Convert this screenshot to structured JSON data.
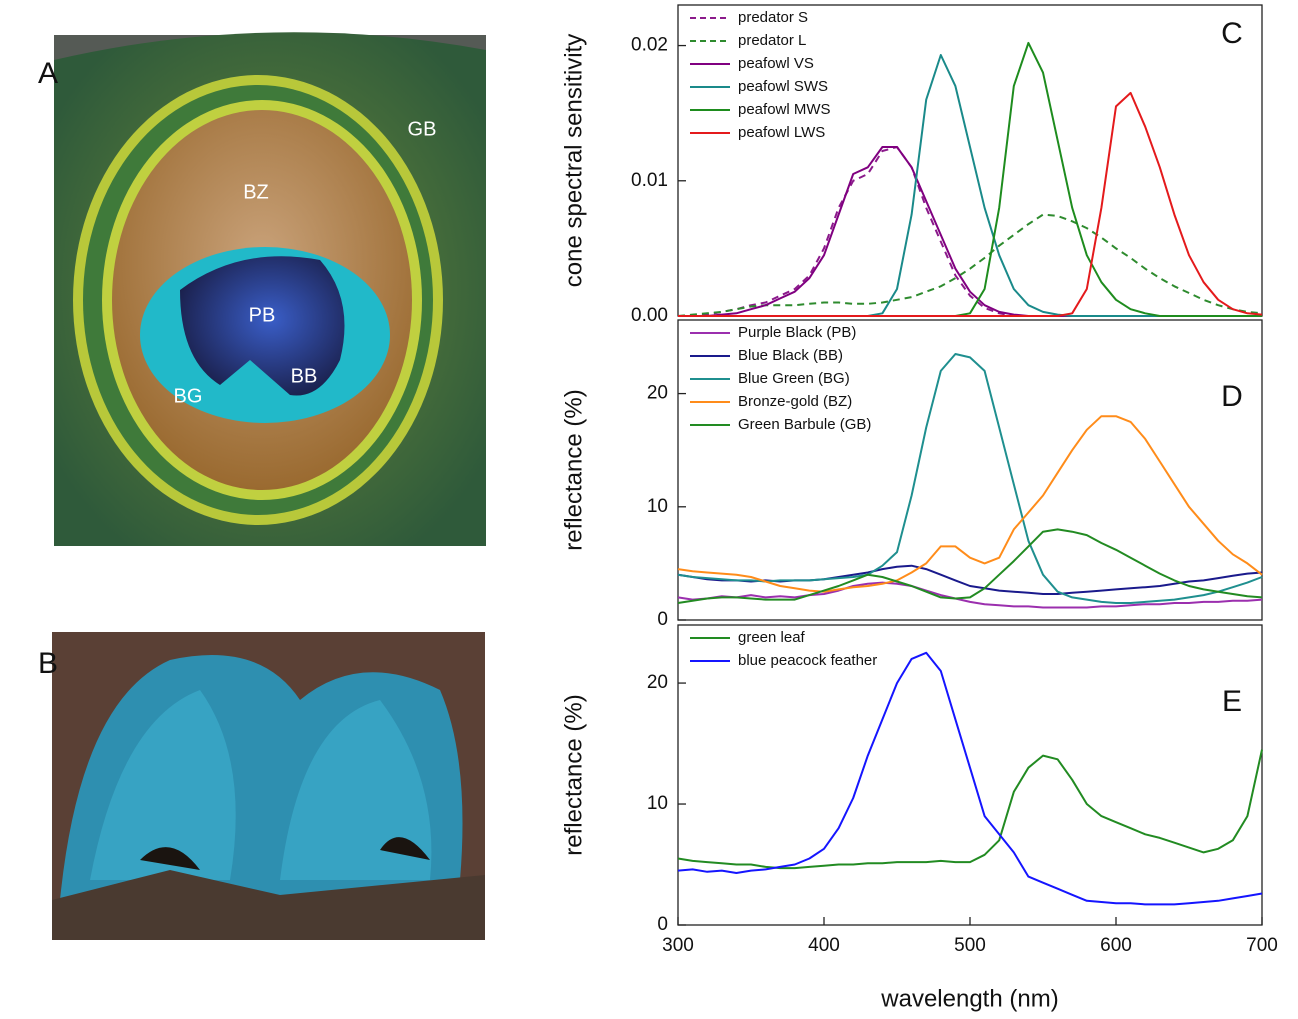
{
  "panels": [
    {
      "label": "A",
      "tags": [
        "GB",
        "BZ",
        "PB",
        "BB",
        "BG"
      ]
    },
    {
      "label": "B"
    }
  ],
  "chart_data": [
    {
      "type": "line",
      "panel_label": "C",
      "ylabel": "cone spectral sensitivity",
      "x": [
        300,
        310,
        320,
        330,
        340,
        350,
        360,
        370,
        380,
        390,
        400,
        410,
        420,
        430,
        440,
        450,
        460,
        470,
        480,
        490,
        500,
        510,
        520,
        530,
        540,
        550,
        560,
        570,
        580,
        590,
        600,
        610,
        620,
        630,
        640,
        650,
        660,
        670,
        680,
        690,
        700
      ],
      "xlim": [
        300,
        700
      ],
      "ylim": [
        0,
        0.023
      ],
      "yticks": [
        {
          "value": 0,
          "label": "0.00"
        },
        0.01,
        0.02
      ],
      "series": [
        {
          "name": "predator S",
          "color": "#8b1a8b",
          "dashed": true,
          "values": [
            0,
            0,
            0.0001,
            0.0003,
            0.0005,
            0.0008,
            0.001,
            0.0015,
            0.002,
            0.003,
            0.005,
            0.008,
            0.01,
            0.0105,
            0.0122,
            0.0125,
            0.011,
            0.008,
            0.0055,
            0.003,
            0.0015,
            0.0006,
            0.0002,
            0,
            0,
            0,
            0,
            0,
            0,
            0,
            0,
            0,
            0,
            0,
            0,
            0,
            0,
            0,
            0,
            0,
            0
          ]
        },
        {
          "name": "predator L",
          "color": "#2e8b2e",
          "dashed": true,
          "values": [
            0,
            0.0001,
            0.0002,
            0.0003,
            0.0005,
            0.0007,
            0.0008,
            0.0008,
            0.0008,
            0.0009,
            0.001,
            0.001,
            0.0009,
            0.0009,
            0.001,
            0.0012,
            0.0014,
            0.0018,
            0.0022,
            0.0028,
            0.0035,
            0.0043,
            0.0052,
            0.006,
            0.0068,
            0.0075,
            0.0074,
            0.007,
            0.0065,
            0.0058,
            0.005,
            0.0043,
            0.0035,
            0.0028,
            0.0022,
            0.0017,
            0.0012,
            0.0008,
            0.0005,
            0.0003,
            0.0002
          ]
        },
        {
          "name": "peafowl VS",
          "color": "#800080",
          "values": [
            0,
            0,
            0,
            0.0001,
            0.0002,
            0.0005,
            0.0008,
            0.0013,
            0.0018,
            0.0028,
            0.0045,
            0.0075,
            0.0105,
            0.011,
            0.0125,
            0.0125,
            0.011,
            0.0085,
            0.006,
            0.0035,
            0.0018,
            0.0008,
            0.0003,
            0.0001,
            0,
            0,
            0,
            0,
            0,
            0,
            0,
            0,
            0,
            0,
            0,
            0,
            0,
            0,
            0,
            0,
            0
          ]
        },
        {
          "name": "peafowl SWS",
          "color": "#1a8a8a",
          "values": [
            0,
            0,
            0,
            0,
            0,
            0,
            0,
            0,
            0,
            0,
            0,
            0,
            0,
            0,
            0.0002,
            0.002,
            0.0075,
            0.016,
            0.0193,
            0.017,
            0.0125,
            0.008,
            0.0045,
            0.002,
            0.0008,
            0.0003,
            0.0001,
            0,
            0,
            0,
            0,
            0,
            0,
            0,
            0,
            0,
            0,
            0,
            0,
            0,
            0
          ]
        },
        {
          "name": "peafowl MWS",
          "color": "#1e8c1e",
          "values": [
            0,
            0,
            0,
            0,
            0,
            0,
            0,
            0,
            0,
            0,
            0,
            0,
            0,
            0,
            0,
            0,
            0,
            0,
            0,
            0,
            0.0002,
            0.002,
            0.008,
            0.017,
            0.0202,
            0.018,
            0.013,
            0.008,
            0.0045,
            0.0025,
            0.0012,
            0.0005,
            0.0002,
            0,
            0,
            0,
            0,
            0,
            0,
            0,
            0
          ]
        },
        {
          "name": "peafowl LWS",
          "color": "#e41a1c",
          "values": [
            0,
            0,
            0,
            0,
            0,
            0,
            0,
            0,
            0,
            0,
            0,
            0,
            0,
            0,
            0,
            0,
            0,
            0,
            0,
            0,
            0,
            0,
            0,
            0,
            0,
            0,
            0,
            0.0002,
            0.002,
            0.008,
            0.0155,
            0.0165,
            0.014,
            0.011,
            0.0075,
            0.0045,
            0.0025,
            0.0012,
            0.0005,
            0.0002,
            0.0001
          ]
        }
      ]
    },
    {
      "type": "line",
      "panel_label": "D",
      "ylabel": "reflectance (%)",
      "x": [
        300,
        310,
        320,
        330,
        340,
        350,
        360,
        370,
        380,
        390,
        400,
        410,
        420,
        430,
        440,
        450,
        460,
        470,
        480,
        490,
        500,
        510,
        520,
        530,
        540,
        550,
        560,
        570,
        580,
        590,
        600,
        610,
        620,
        630,
        640,
        650,
        660,
        670,
        680,
        690,
        700
      ],
      "xlim": [
        300,
        700
      ],
      "ylim": [
        0,
        26.5
      ],
      "yticks": [
        0,
        10,
        20
      ],
      "series": [
        {
          "name": "Purple Black (PB)",
          "color": "#9b2fae",
          "values": [
            2,
            1.8,
            1.9,
            2.1,
            2,
            2.2,
            2,
            2.1,
            2,
            2.2,
            2.3,
            2.6,
            3,
            3.2,
            3.3,
            3.2,
            3,
            2.6,
            2.2,
            1.9,
            1.6,
            1.4,
            1.3,
            1.2,
            1.2,
            1.1,
            1.1,
            1.1,
            1.1,
            1.2,
            1.2,
            1.3,
            1.4,
            1.4,
            1.5,
            1.5,
            1.6,
            1.6,
            1.7,
            1.7,
            1.8
          ]
        },
        {
          "name": "Blue Black (BB)",
          "color": "#1a1a8c",
          "values": [
            4,
            3.8,
            3.6,
            3.5,
            3.5,
            3.4,
            3.5,
            3.4,
            3.5,
            3.5,
            3.6,
            3.8,
            4,
            4.2,
            4.5,
            4.7,
            4.8,
            4.5,
            4,
            3.5,
            3,
            2.8,
            2.6,
            2.5,
            2.4,
            2.3,
            2.3,
            2.4,
            2.5,
            2.6,
            2.7,
            2.8,
            2.9,
            3,
            3.2,
            3.4,
            3.5,
            3.7,
            3.9,
            4.1,
            4.2
          ]
        },
        {
          "name": "Blue Green (BG)",
          "color": "#1f8f8f",
          "values": [
            4,
            3.8,
            3.7,
            3.6,
            3.5,
            3.5,
            3.4,
            3.5,
            3.5,
            3.5,
            3.6,
            3.7,
            3.8,
            4,
            4.8,
            6,
            11,
            17,
            22,
            23.5,
            23.2,
            22,
            17,
            12,
            7,
            4,
            2.5,
            2,
            1.8,
            1.6,
            1.5,
            1.5,
            1.6,
            1.7,
            1.8,
            2,
            2.2,
            2.5,
            2.9,
            3.3,
            3.8
          ]
        },
        {
          "name": "Bronze-gold (BZ)",
          "color": "#ff8c1a",
          "values": [
            4.5,
            4.3,
            4.2,
            4.1,
            4,
            3.8,
            3.4,
            3,
            2.8,
            2.6,
            2.5,
            2.7,
            2.9,
            3,
            3.2,
            3.5,
            4.2,
            5,
            6.5,
            6.5,
            5.5,
            5,
            5.5,
            8,
            9.5,
            11,
            13,
            15,
            16.8,
            18,
            18,
            17.5,
            16,
            14,
            12,
            10,
            8.5,
            7,
            5.8,
            5,
            4
          ]
        },
        {
          "name": "Green Barbule (GB)",
          "color": "#228b22",
          "values": [
            1.5,
            1.7,
            1.9,
            2,
            2,
            1.9,
            1.8,
            1.8,
            1.8,
            2.2,
            2.6,
            3,
            3.5,
            4,
            3.8,
            3.4,
            3,
            2.5,
            2,
            1.9,
            2,
            2.8,
            4,
            5.2,
            6.5,
            7.8,
            8,
            7.8,
            7.5,
            6.8,
            6.2,
            5.5,
            4.8,
            4.1,
            3.5,
            3,
            2.7,
            2.5,
            2.3,
            2.1,
            2
          ]
        }
      ]
    },
    {
      "type": "line",
      "panel_label": "E",
      "ylabel": "reflectance (%)",
      "xlabel": "wavelength (nm)",
      "x": [
        300,
        310,
        320,
        330,
        340,
        350,
        360,
        370,
        380,
        390,
        400,
        410,
        420,
        430,
        440,
        450,
        460,
        470,
        480,
        490,
        500,
        510,
        520,
        530,
        540,
        550,
        560,
        570,
        580,
        590,
        600,
        610,
        620,
        630,
        640,
        650,
        660,
        670,
        680,
        690,
        700
      ],
      "xlim": [
        300,
        700
      ],
      "ylim": [
        0,
        24.8
      ],
      "xticks": [
        300,
        400,
        500,
        600,
        700
      ],
      "yticks": [
        0,
        10,
        20
      ],
      "series": [
        {
          "name": "green leaf",
          "color": "#228b22",
          "values": [
            5.5,
            5.3,
            5.2,
            5.1,
            5,
            5,
            4.8,
            4.7,
            4.7,
            4.8,
            4.9,
            5,
            5,
            5.1,
            5.1,
            5.2,
            5.2,
            5.2,
            5.3,
            5.2,
            5.2,
            5.8,
            7,
            11,
            13,
            14,
            13.7,
            12,
            10,
            9,
            8.5,
            8,
            7.5,
            7.2,
            6.8,
            6.4,
            6,
            6.3,
            7,
            9,
            14.5
          ]
        },
        {
          "name": "blue peacock feather",
          "color": "#1515ff",
          "values": [
            4.5,
            4.6,
            4.4,
            4.5,
            4.3,
            4.5,
            4.6,
            4.8,
            5,
            5.5,
            6.3,
            8,
            10.5,
            14,
            17,
            20,
            22,
            22.5,
            21,
            17,
            13,
            9,
            7.5,
            6,
            4,
            3.5,
            3,
            2.5,
            2,
            1.9,
            1.8,
            1.8,
            1.7,
            1.7,
            1.7,
            1.8,
            1.9,
            2,
            2.2,
            2.4,
            2.6
          ]
        }
      ]
    }
  ]
}
